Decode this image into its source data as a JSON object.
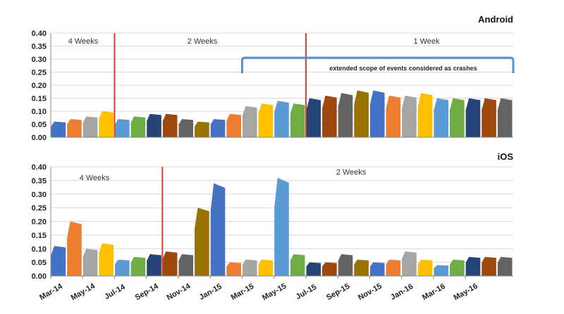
{
  "chart_data": [
    {
      "type": "area",
      "title": "Android",
      "ylim": [
        0,
        0.4
      ],
      "yticks": [
        "0.00",
        "0.05",
        "0.10",
        "0.15",
        "0.20",
        "0.25",
        "0.30",
        "0.35",
        "0.40"
      ],
      "xlim": [
        "Mar-14",
        "Aug-16"
      ],
      "grid": true,
      "period_labels": [
        "4 Weeks",
        "2 Weeks",
        "1 Week"
      ],
      "period_boundaries": [
        "Jul-14",
        "Jul-15"
      ],
      "annotation": "extended scope of events considered as crashes",
      "annotation_range": [
        "Mar-15",
        "Aug-16"
      ],
      "segments": [
        {
          "x": "Mar-14",
          "value": 0.06
        },
        {
          "x": "Apr-14",
          "value": 0.07
        },
        {
          "x": "May-14",
          "value": 0.08
        },
        {
          "x": "Jun-14",
          "value": 0.1
        },
        {
          "x": "Jul-14",
          "value": 0.07
        },
        {
          "x": "Aug-14",
          "value": 0.08
        },
        {
          "x": "Sep-14",
          "value": 0.09
        },
        {
          "x": "Oct-14",
          "value": 0.09
        },
        {
          "x": "Nov-14",
          "value": 0.07
        },
        {
          "x": "Dec-14",
          "value": 0.06
        },
        {
          "x": "Jan-15",
          "value": 0.07
        },
        {
          "x": "Feb-15",
          "value": 0.09
        },
        {
          "x": "Mar-15",
          "value": 0.12
        },
        {
          "x": "Apr-15",
          "value": 0.13
        },
        {
          "x": "May-15",
          "value": 0.14
        },
        {
          "x": "Jun-15",
          "value": 0.13
        },
        {
          "x": "Jul-15",
          "value": 0.15
        },
        {
          "x": "Aug-15",
          "value": 0.16
        },
        {
          "x": "Sep-15",
          "value": 0.17
        },
        {
          "x": "Oct-15",
          "value": 0.18
        },
        {
          "x": "Nov-15",
          "value": 0.18
        },
        {
          "x": "Dec-15",
          "value": 0.16
        },
        {
          "x": "Jan-16",
          "value": 0.16
        },
        {
          "x": "Feb-16",
          "value": 0.17
        },
        {
          "x": "Mar-16",
          "value": 0.15
        },
        {
          "x": "Apr-16",
          "value": 0.15
        },
        {
          "x": "May-16",
          "value": 0.15
        },
        {
          "x": "Jun-16",
          "value": 0.15
        },
        {
          "x": "Jul-16",
          "value": 0.15
        }
      ]
    },
    {
      "type": "area",
      "title": "iOS",
      "ylim": [
        0,
        0.4
      ],
      "yticks": [
        "0.00",
        "0.05",
        "0.10",
        "0.15",
        "0.20",
        "0.25",
        "0.30",
        "0.35",
        "0.40"
      ],
      "xticks": [
        "Mar-14",
        "May-14",
        "Jul-14",
        "Sep-14",
        "Nov-14",
        "Jan-15",
        "Mar-15",
        "May-15",
        "Jul-15",
        "Sep-15",
        "Nov-15",
        "Jan-16",
        "Mar-16",
        "May-16"
      ],
      "xlim": [
        "Mar-14",
        "Aug-16"
      ],
      "grid": true,
      "period_labels": [
        "4 Weeks",
        "2 Weeks"
      ],
      "period_boundaries": [
        "Oct-14"
      ],
      "segments": [
        {
          "x": "Mar-14",
          "value": 0.11
        },
        {
          "x": "Apr-14",
          "value": 0.2
        },
        {
          "x": "May-14",
          "value": 0.1
        },
        {
          "x": "Jun-14",
          "value": 0.12
        },
        {
          "x": "Jul-14",
          "value": 0.06
        },
        {
          "x": "Aug-14",
          "value": 0.07
        },
        {
          "x": "Sep-14",
          "value": 0.08
        },
        {
          "x": "Oct-14",
          "value": 0.09
        },
        {
          "x": "Nov-14",
          "value": 0.08
        },
        {
          "x": "Dec-14",
          "value": 0.25
        },
        {
          "x": "Jan-15",
          "value": 0.34
        },
        {
          "x": "Feb-15",
          "value": 0.05
        },
        {
          "x": "Mar-15",
          "value": 0.06
        },
        {
          "x": "Apr-15",
          "value": 0.06
        },
        {
          "x": "May-15",
          "value": 0.36
        },
        {
          "x": "Jun-15",
          "value": 0.08
        },
        {
          "x": "Jul-15",
          "value": 0.05
        },
        {
          "x": "Aug-15",
          "value": 0.05
        },
        {
          "x": "Sep-15",
          "value": 0.08
        },
        {
          "x": "Oct-15",
          "value": 0.06
        },
        {
          "x": "Nov-15",
          "value": 0.05
        },
        {
          "x": "Dec-15",
          "value": 0.06
        },
        {
          "x": "Jan-16",
          "value": 0.09
        },
        {
          "x": "Feb-16",
          "value": 0.06
        },
        {
          "x": "Mar-16",
          "value": 0.04
        },
        {
          "x": "Apr-16",
          "value": 0.06
        },
        {
          "x": "May-16",
          "value": 0.07
        },
        {
          "x": "Jun-16",
          "value": 0.07
        },
        {
          "x": "Jul-16",
          "value": 0.07
        }
      ]
    }
  ],
  "palette": [
    "#4472c4",
    "#ed7d31",
    "#a5a5a5",
    "#ffc000",
    "#5b9bd5",
    "#70ad47",
    "#264478",
    "#9e480e",
    "#636363",
    "#997300"
  ],
  "colors": {
    "divider": "#e03c31",
    "bracket": "#5b8fc9",
    "grid": "#d9d9d9"
  }
}
